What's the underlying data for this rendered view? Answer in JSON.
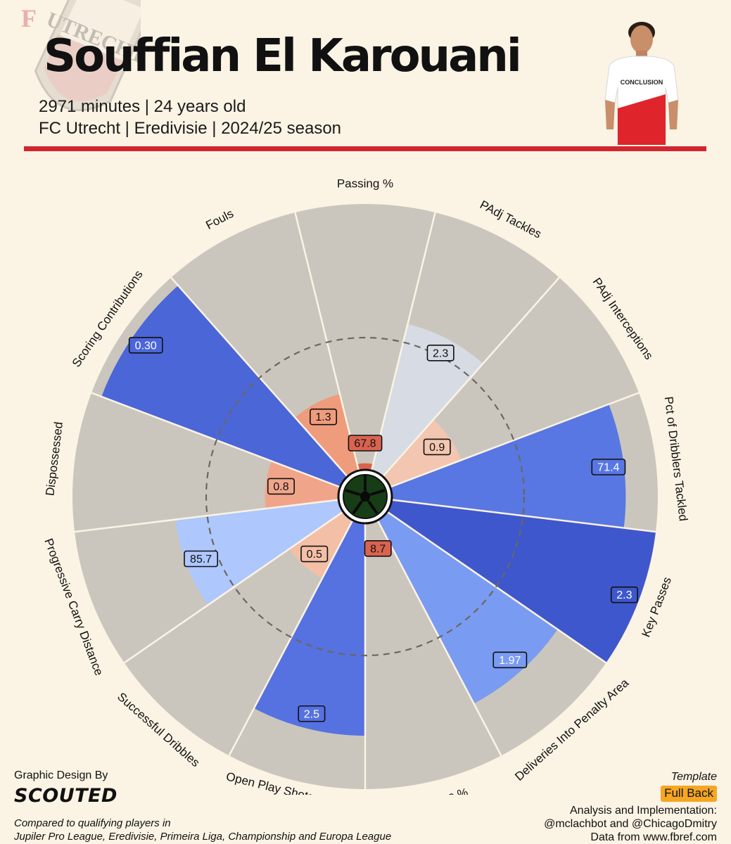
{
  "header": {
    "player_name": "Souffian El Karouani",
    "subtitle_line1": "2971 minutes | 24 years old",
    "subtitle_line2": "FC Utrecht | Eredivisie | 2024/25 season",
    "accent_color": "#d1262f"
  },
  "crest": {
    "text": "UTRECHT",
    "letter": "F",
    "color": "#d1262f"
  },
  "photo": {
    "shirt_text": "CONCLUSION",
    "shirt_color": "#ffffff",
    "accent_color": "#e0242b"
  },
  "chart_data": {
    "type": "polar-bar",
    "percentile_scale": [
      0,
      100
    ],
    "reference_ring_percentile": 50,
    "categories": [
      "Passing %",
      "PAdj Tackles",
      "PAdj Interceptions",
      "Pct of Dribblers Tackled",
      "Key Passes",
      "Deliveries Into Penalty Area",
      "Crosses %",
      "Open Play Shots Created for Others",
      "Successful Dribbles",
      "Progressive Carry Distance",
      "Dispossessed",
      "Scoring Contributions",
      "Fouls"
    ],
    "values": [
      "67.8",
      "2.3",
      "0.9",
      "71.4",
      "2.3",
      "1.97",
      "8.7",
      "2.5",
      "0.5",
      "85.7",
      "0.8",
      "0.30",
      "1.3"
    ],
    "percentiles": [
      3,
      57,
      29,
      88,
      100,
      78,
      1,
      80,
      25,
      62,
      28,
      96,
      30
    ],
    "colors": [
      "#d9634f",
      "#d6dbe4",
      "#f2c6b0",
      "#5877e3",
      "#3f57cc",
      "#7a9bf2",
      "#d9634f",
      "#5671e0",
      "#f3bfa6",
      "#aec7fd",
      "#f0a58a",
      "#4b66d7",
      "#ef9c7d"
    ],
    "grid_color": "#cbc6bd"
  },
  "footer": {
    "credit_label": "Graphic Design By",
    "brand": "SCOUTED",
    "comparison_line1": "Compared to qualifying players in",
    "comparison_line2": "Jupiler Pro League, Eredivisie, Primeira Liga, Championship and Europa League",
    "template_label": "Template",
    "template_value": "Full Back",
    "analysis_label": "Analysis and Implementation:",
    "handles": "@mclachbot and @ChicagoDmitry",
    "source": "Data from www.fbref.com"
  }
}
